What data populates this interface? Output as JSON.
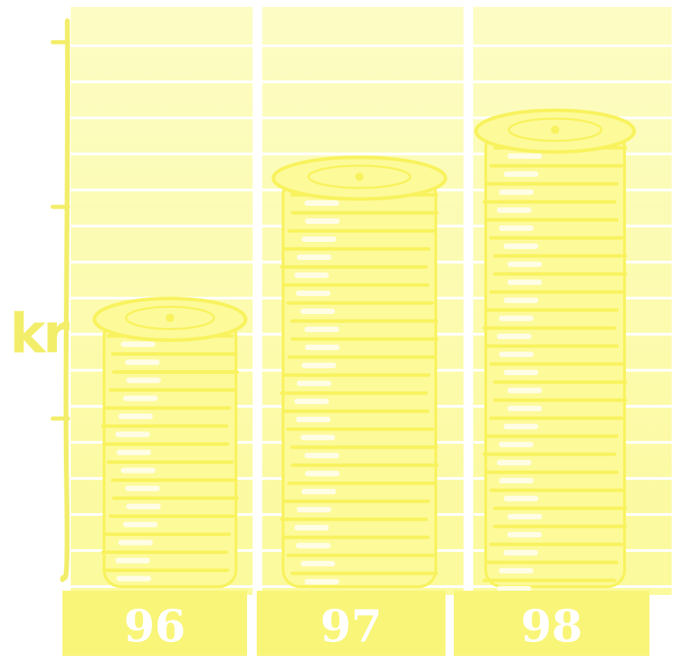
{
  "chart_data": {
    "type": "bar",
    "title": "",
    "xlabel": "",
    "ylabel": "kr",
    "categories": [
      "96",
      "97",
      "98"
    ],
    "values": [
      49,
      73,
      81
    ],
    "ylim": [
      0,
      100
    ],
    "grid": true,
    "legend": "none",
    "y_ticks_unlabeled": [
      30,
      66,
      94
    ]
  },
  "colors": {
    "background": "#ffffff",
    "panel": "#fdfcc4",
    "panel_bottom": "#fbfa9c",
    "grid": "#ffffff",
    "axis": "#f3ee6a",
    "coin_fill": "#fdfa9a",
    "coin_edge": "#f8f25e",
    "coin_stripe": "#fffde4",
    "label_box": "#f9f578",
    "label_text": "#ffffff"
  },
  "icons": {
    "bar_mark": "coin-stack-icon"
  }
}
